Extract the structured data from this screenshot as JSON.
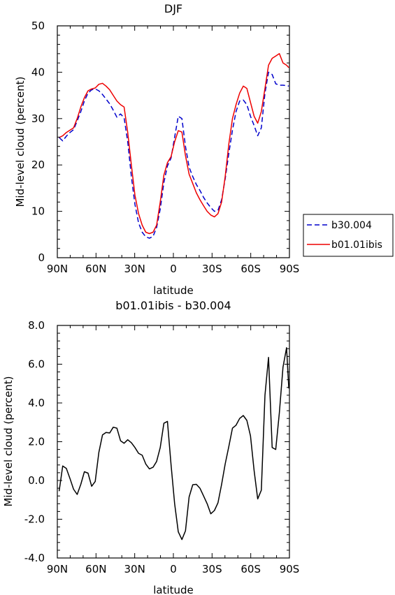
{
  "chart_data": [
    {
      "type": "line",
      "title": "DJF",
      "xlabel": "latitude",
      "ylabel": "Mid-level cloud (percent)",
      "xlim": [
        90,
        -90
      ],
      "ylim": [
        0,
        50
      ],
      "x_ticks": [
        90,
        60,
        30,
        0,
        -30,
        -60,
        -90
      ],
      "x_tick_labels": [
        "90N",
        "60N",
        "30N",
        "0",
        "30S",
        "60S",
        "90S"
      ],
      "y_ticks": [
        0,
        10,
        20,
        30,
        40,
        50
      ],
      "y_tick_labels": [
        "0",
        "10",
        "20",
        "30",
        "40",
        "50"
      ],
      "legend_position": "outside-right",
      "series": [
        {
          "name": "b30.004",
          "color": "#0000cc",
          "dash": "dashed",
          "x": [
            88.6,
            85.8,
            83,
            80.2,
            77.4,
            74.6,
            71.8,
            69,
            66.2,
            63.4,
            60.6,
            57.8,
            55,
            52.2,
            49.4,
            46.6,
            43.8,
            41,
            38.2,
            35.4,
            32.6,
            29.8,
            27,
            24.2,
            21.4,
            18.6,
            15.8,
            13,
            10.2,
            7.4,
            4.6,
            1.8,
            -1,
            -3.8,
            -6.6,
            -9.4,
            -12.2,
            -15,
            -17.8,
            -20.6,
            -23.4,
            -26.2,
            -29,
            -31.8,
            -34.6,
            -37.4,
            -40.2,
            -43,
            -45.8,
            -48.6,
            -51.4,
            -54.2,
            -57,
            -59.8,
            -62.6,
            -65.4,
            -68.2,
            -71,
            -73.8,
            -76.6,
            -79.4,
            -82.2,
            -85,
            -87.8,
            -89.5
          ],
          "y": [
            25.9,
            25.2,
            26.2,
            27.0,
            27.6,
            29.5,
            31.5,
            33.8,
            35.5,
            36.2,
            36.4,
            36.0,
            35.2,
            34.2,
            33.2,
            31.8,
            30.3,
            31.0,
            30.2,
            25.0,
            17.5,
            11.5,
            7.5,
            5.5,
            4.5,
            4.2,
            4.6,
            6.5,
            10.5,
            16.2,
            19.8,
            21.5,
            26.0,
            30.5,
            30.0,
            24.0,
            19.5,
            17.5,
            15.8,
            14.5,
            13.0,
            11.8,
            10.8,
            10.0,
            10.2,
            12.5,
            17.0,
            22.5,
            27.5,
            31.5,
            33.8,
            34.0,
            33.0,
            30.5,
            28.5,
            26.3,
            28.0,
            35.5,
            40.0,
            39.5,
            37.5,
            37.2,
            37.2,
            37.1,
            37.0
          ]
        },
        {
          "name": "b01.01ibis",
          "color": "#ee0000",
          "dash": "solid",
          "x": [
            88.6,
            85.8,
            83,
            80.2,
            77.4,
            74.6,
            71.8,
            69,
            66.2,
            63.4,
            60.6,
            57.8,
            55,
            52.2,
            49.4,
            46.6,
            43.8,
            41,
            38.2,
            35.4,
            32.6,
            29.8,
            27,
            24.2,
            21.4,
            18.6,
            15.8,
            13,
            10.2,
            7.4,
            4.6,
            1.8,
            -1,
            -3.8,
            -6.6,
            -9.4,
            -12.2,
            -15,
            -17.8,
            -20.6,
            -23.4,
            -26.2,
            -29,
            -31.8,
            -34.6,
            -37.4,
            -40.2,
            -43,
            -45.8,
            -48.6,
            -51.4,
            -54.2,
            -57,
            -59.8,
            -62.6,
            -65.4,
            -68.2,
            -71,
            -73.8,
            -76.6,
            -79.4,
            -82.2,
            -85,
            -87.8,
            -89.5
          ],
          "y": [
            25.9,
            26.3,
            27.0,
            27.5,
            28.0,
            30.0,
            32.5,
            34.5,
            36.0,
            36.4,
            36.6,
            37.4,
            37.6,
            37.0,
            36.2,
            35.0,
            33.8,
            33.0,
            32.5,
            27.0,
            20.0,
            13.5,
            9.5,
            7.0,
            5.5,
            5.2,
            5.5,
            7.0,
            12.0,
            17.8,
            20.5,
            21.8,
            25.0,
            27.4,
            27.1,
            22.0,
            18.0,
            16.0,
            14.0,
            12.5,
            11.2,
            10.0,
            9.2,
            8.8,
            9.5,
            12.0,
            17.5,
            24.5,
            30.0,
            33.0,
            35.5,
            37.0,
            36.5,
            33.5,
            30.5,
            29.0,
            31.5,
            36.5,
            41.5,
            43.0,
            43.5,
            44.0,
            42.0,
            41.5,
            41.0
          ]
        }
      ]
    },
    {
      "type": "line",
      "title": "b01.01ibis - b30.004",
      "xlabel": "latitude",
      "ylabel": "Mid-level cloud (percent)",
      "xlim": [
        90,
        -90
      ],
      "ylim": [
        -4,
        8
      ],
      "x_ticks": [
        90,
        60,
        30,
        0,
        -30,
        -60,
        -90
      ],
      "x_tick_labels": [
        "90N",
        "60N",
        "30N",
        "0",
        "30S",
        "60S",
        "90S"
      ],
      "y_ticks": [
        -4,
        -2,
        0,
        2,
        4,
        6,
        8
      ],
      "y_tick_labels": [
        "-4.0",
        "-2.0",
        "0.0",
        "2.0",
        "4.0",
        "6.0",
        "8.0"
      ],
      "series": [
        {
          "color": "#000000",
          "dash": "solid",
          "x": [
            88.6,
            85.8,
            83,
            80.2,
            77.4,
            74.6,
            71.8,
            69,
            66.2,
            63.4,
            60.6,
            57.8,
            55,
            52.2,
            49.4,
            46.6,
            43.8,
            41,
            38.2,
            35.4,
            32.6,
            29.8,
            27,
            24.2,
            21.4,
            18.6,
            15.8,
            13,
            10.2,
            7.4,
            4.6,
            1.8,
            -1,
            -3.8,
            -6.6,
            -9.4,
            -12.2,
            -15,
            -17.8,
            -20.6,
            -23.4,
            -26.2,
            -29,
            -31.8,
            -34.6,
            -37.4,
            -40.2,
            -43,
            -45.8,
            -48.6,
            -51.4,
            -54.2,
            -57,
            -59.8,
            -62.6,
            -65.4,
            -68.2,
            -71,
            -73.8,
            -76.6,
            -79.4,
            -82.2,
            -85,
            -87.8,
            -89.5
          ],
          "y": [
            -0.55,
            0.75,
            0.62,
            0.1,
            -0.45,
            -0.72,
            -0.2,
            0.45,
            0.38,
            -0.3,
            -0.05,
            1.45,
            2.35,
            2.48,
            2.45,
            2.75,
            2.7,
            2.05,
            1.92,
            2.1,
            1.95,
            1.7,
            1.4,
            1.3,
            0.85,
            0.6,
            0.68,
            0.98,
            1.7,
            2.95,
            3.05,
            0.8,
            -1.2,
            -2.65,
            -3.05,
            -2.6,
            -0.85,
            -0.22,
            -0.2,
            -0.4,
            -0.8,
            -1.2,
            -1.72,
            -1.55,
            -1.15,
            -0.2,
            0.85,
            1.75,
            2.7,
            2.85,
            3.2,
            3.35,
            3.1,
            2.3,
            0.5,
            -0.95,
            -0.5,
            4.4,
            6.35,
            1.7,
            1.6,
            3.5,
            5.85,
            6.85,
            4.75
          ]
        }
      ]
    }
  ]
}
